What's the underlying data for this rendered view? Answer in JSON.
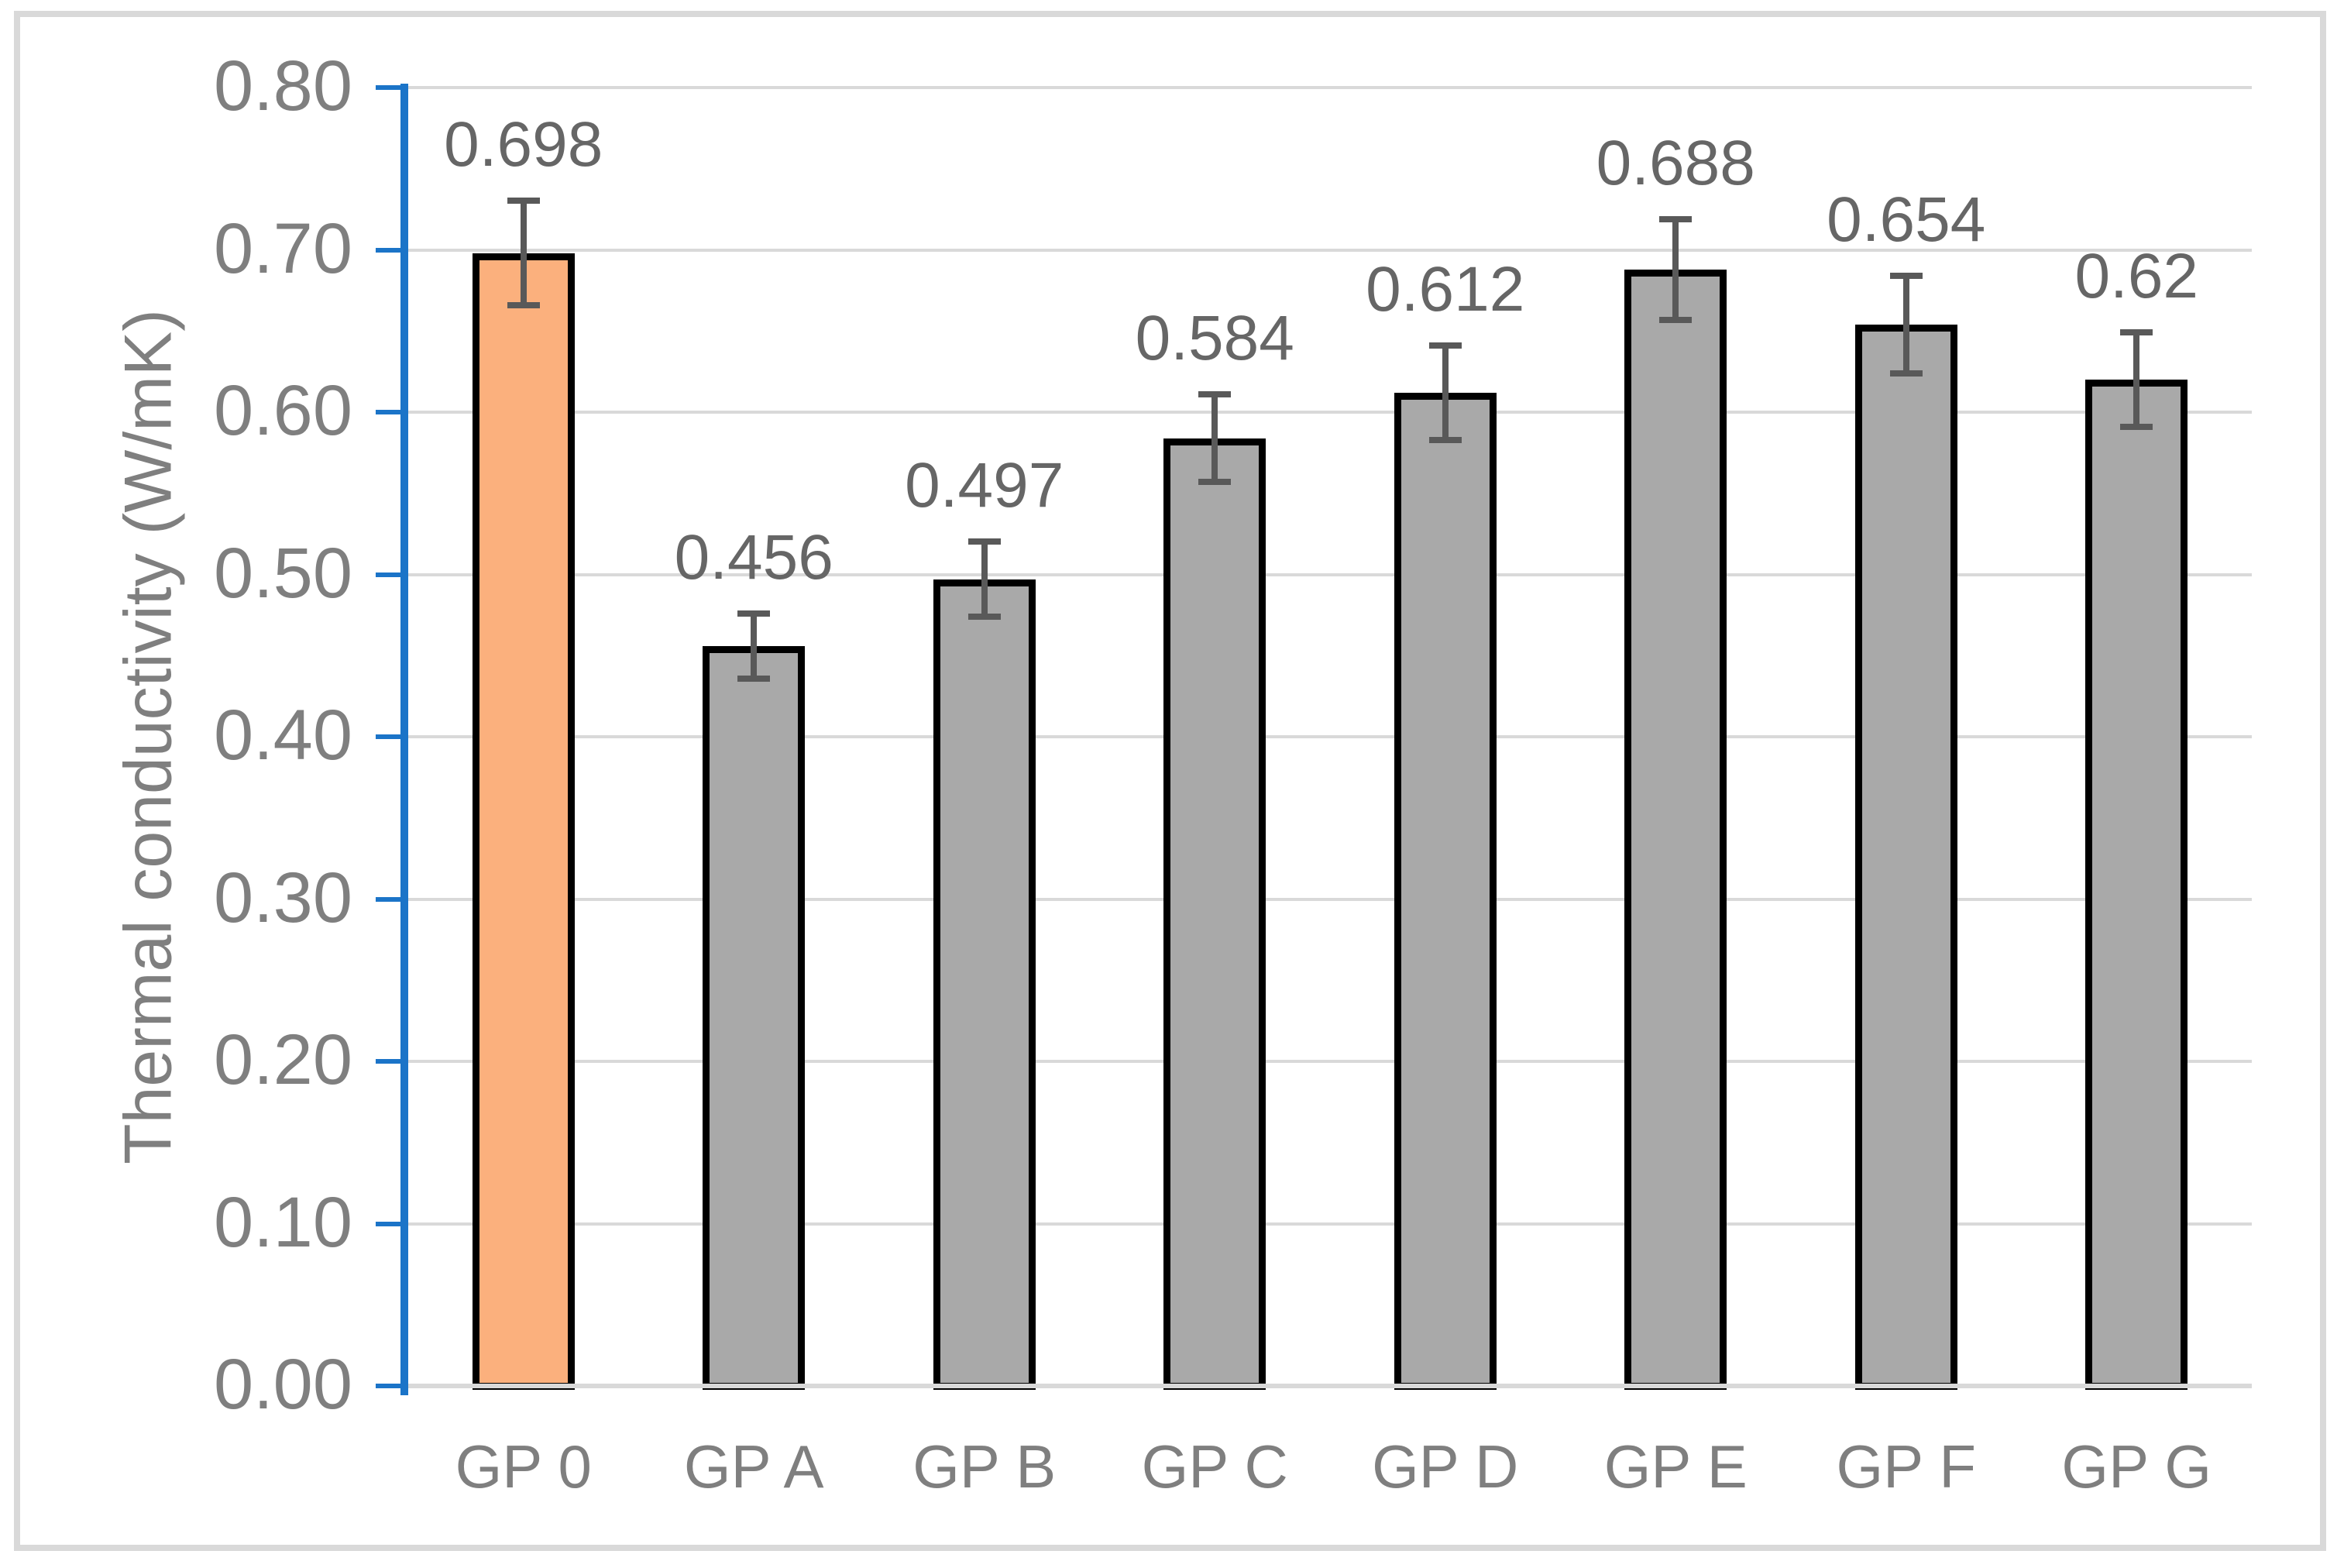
{
  "chart_data": {
    "type": "bar",
    "title": "",
    "xlabel": "",
    "ylabel": "Thermal conductivity (W/mK)",
    "categories": [
      "GP 0",
      "GP A",
      "GP B",
      "GP C",
      "GP D",
      "GP E",
      "GP F",
      "GP G"
    ],
    "values": [
      0.698,
      0.456,
      0.497,
      0.584,
      0.612,
      0.688,
      0.654,
      0.62
    ],
    "data_labels": [
      "0.698",
      "0.456",
      "0.497",
      "0.584",
      "0.612",
      "0.688",
      "0.654",
      "0.62"
    ],
    "error_bars": [
      0.034,
      0.022,
      0.025,
      0.029,
      0.031,
      0.033,
      0.032,
      0.031
    ],
    "ylim": [
      0,
      0.8
    ],
    "ytick_step": 0.1,
    "ytick_labels": [
      "0.80",
      "0.70",
      "0.60",
      "0.50",
      "0.40",
      "0.30",
      "0.20",
      "0.10",
      "0.00"
    ],
    "grid": true,
    "legend_position": "none",
    "highlight_index": 0,
    "colors": {
      "highlight_bar_fill": "#fbb07d",
      "default_bar_fill": "#a9a9a9",
      "bar_outline": "#000000",
      "error_bar": "#595959",
      "axis_line": "#1b74c8",
      "gridline": "#d9d9d9",
      "frame_border": "#d9d9d9",
      "tick_text": "#7f7f7f",
      "data_label_text": "#666666",
      "background": "#ffffff"
    }
  }
}
